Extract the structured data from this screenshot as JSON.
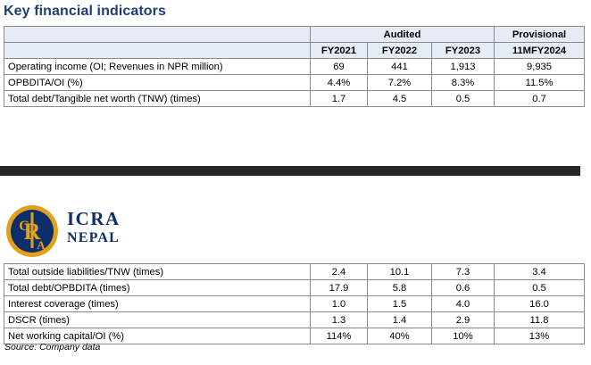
{
  "title": "Key financial indicators",
  "header": {
    "group_audited": "Audited",
    "group_provisional": "Provisional",
    "columns": [
      "FY2021",
      "FY2022",
      "FY2023",
      "11MFY2024"
    ]
  },
  "rows_top": [
    {
      "label": "Operating income (OI; Revenues in NPR million)",
      "values": [
        "69",
        "441",
        "1,913",
        "9,935"
      ]
    },
    {
      "label": "OPBDITA/OI (%)",
      "values": [
        "4.4%",
        "7.2%",
        "8.3%",
        "11.5%"
      ]
    },
    {
      "label": "Total debt/Tangible net worth (TNW) (times)",
      "values": [
        "1.7",
        "4.5",
        "0.5",
        "0.7"
      ]
    }
  ],
  "logo": {
    "name": "ICRA",
    "sub": "NEPAL",
    "monogram": "ICRA"
  },
  "rows_bottom": [
    {
      "label": "Total outside liabilities/TNW (times)",
      "values": [
        "2.4",
        "10.1",
        "7.3",
        "3.4"
      ]
    },
    {
      "label": "Total debt/OPBDITA (times)",
      "values": [
        "17.9",
        "5.8",
        "0.6",
        "0.5"
      ]
    },
    {
      "label": "Interest coverage (times)",
      "values": [
        "1.0",
        "1.5",
        "4.0",
        "16.0"
      ]
    },
    {
      "label": "DSCR (times)",
      "values": [
        "1.3",
        "1.4",
        "2.9",
        "11.8"
      ]
    },
    {
      "label": "Net working capital/OI (%)",
      "values": [
        "114%",
        "40%",
        "10%",
        "13%"
      ]
    }
  ],
  "source": "Source: Company data",
  "colors": {
    "heading": "#1f3f73",
    "header_fill": "#e6ecf6",
    "band": "#262626",
    "logo_gold": "#e0a21c",
    "logo_navy": "#0e2d6b"
  }
}
